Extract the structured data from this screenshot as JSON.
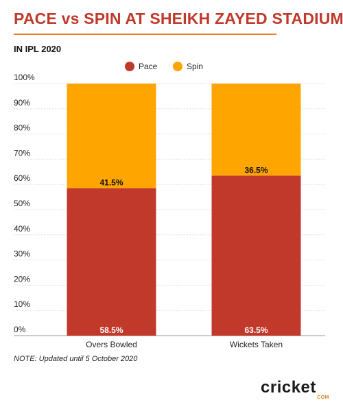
{
  "header": {
    "title": "PACE vs SPIN AT SHEIKH ZAYED STADIUM",
    "subtitle": "IN IPL 2020"
  },
  "footer": {
    "note": "NOTE: Updated until 5 October 2020",
    "logo_text": "cricket",
    "logo_sub": "COM"
  },
  "chart_data": {
    "type": "bar",
    "stacked": true,
    "categories": [
      "Overs Bowled",
      "Wickets Taken"
    ],
    "series": [
      {
        "name": "Pace",
        "values": [
          58.5,
          63.5
        ],
        "labels": [
          "58.5%",
          "63.5%"
        ],
        "color": "#c0392b"
      },
      {
        "name": "Spin",
        "values": [
          41.5,
          36.5
        ],
        "labels": [
          "41.5%",
          "36.5%"
        ],
        "color": "#ffa500"
      }
    ],
    "yticks": [
      "0%",
      "10%",
      "20%",
      "30%",
      "40%",
      "50%",
      "60%",
      "70%",
      "80%",
      "90%",
      "100%"
    ],
    "ylim": [
      0,
      100
    ],
    "grid": true,
    "legend_position": "top-center"
  }
}
